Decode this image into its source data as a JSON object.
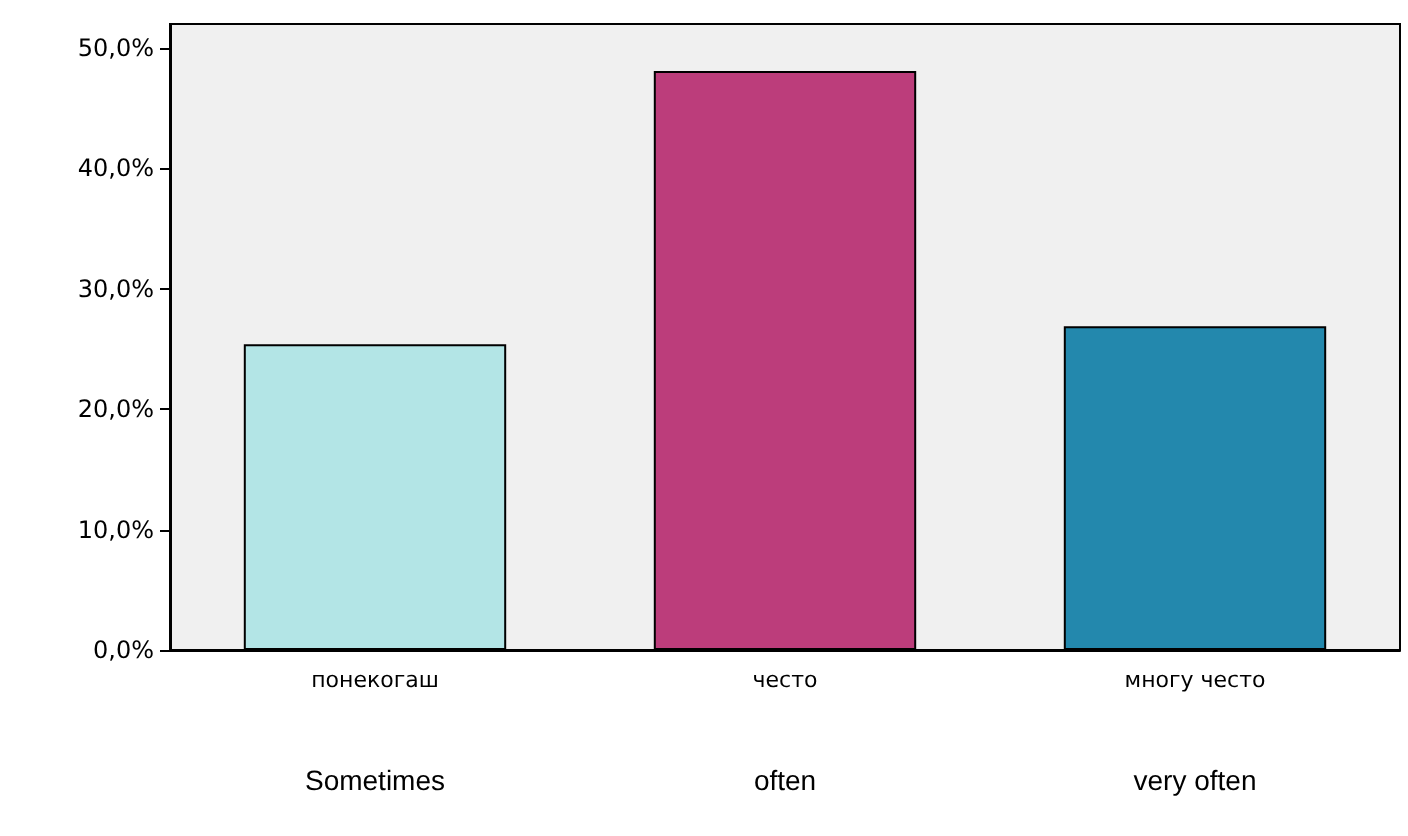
{
  "chart_data": {
    "type": "bar",
    "categories": [
      "понекогаш\nSometimes",
      "често\noften",
      "многу често\nvery often"
    ],
    "values": [
      25.4,
      48.1,
      26.9
    ],
    "colors": [
      "#b3e5e6",
      "#bc3d7b",
      "#2388ad"
    ],
    "ylim": [
      0,
      52
    ],
    "yticks": [
      {
        "value": 0,
        "label": "0,0%"
      },
      {
        "value": 10,
        "label": "10,0%"
      },
      {
        "value": 20,
        "label": "20,0%"
      },
      {
        "value": 30,
        "label": "30,0%"
      },
      {
        "value": 40,
        "label": "40,0%"
      },
      {
        "value": 50,
        "label": "50,0%"
      }
    ],
    "grid": false
  }
}
